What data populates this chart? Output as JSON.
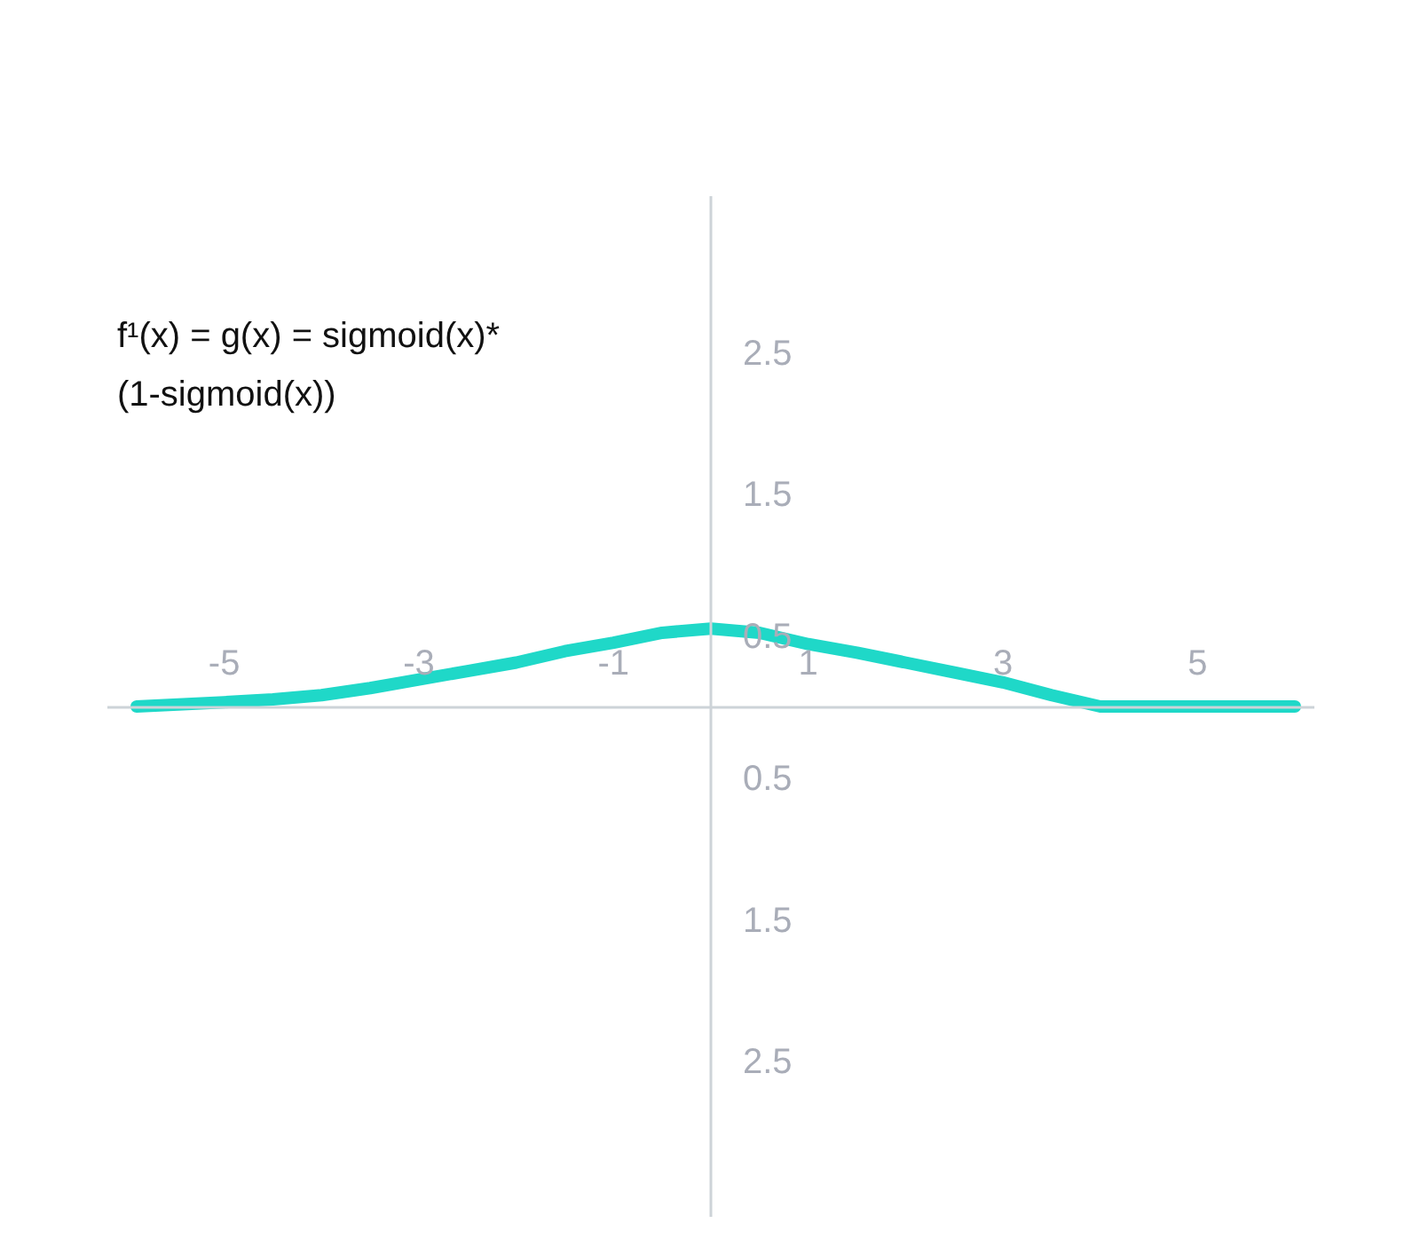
{
  "chart_data": {
    "type": "line",
    "x": [
      -5.9,
      -5,
      -4.5,
      -4,
      -3.5,
      -3,
      -2.5,
      -2,
      -1.5,
      -1,
      -0.5,
      0,
      0.5,
      1,
      1.5,
      2,
      2.5,
      3,
      3.5,
      4,
      5,
      6
    ],
    "series": [
      {
        "color": "#1fd8c8",
        "values": [
          0,
          0.03,
          0.05,
          0.08,
          0.13,
          0.19,
          0.25,
          0.31,
          0.39,
          0.45,
          0.52,
          0.55,
          0.52,
          0.44,
          0.38,
          0.31,
          0.24,
          0.17,
          0.08,
          0,
          0,
          0
        ]
      }
    ],
    "xlim": [
      -6.2,
      6.2
    ],
    "ylim": [
      -3.6,
      3.6
    ],
    "xticks": [
      -5,
      -3,
      -1,
      1,
      3,
      5
    ],
    "yticks": [
      2.5,
      1.5,
      0.5,
      {
        "value": -0.5,
        "label": "0.5"
      },
      {
        "value": -1.5,
        "label": "1.5"
      },
      {
        "value": -2.5,
        "label": "2.5"
      }
    ],
    "annotations": [
      "f¹(x) = g(x) = sigmoid(x)*\n(1-sigmoid(x))"
    ],
    "grid": false,
    "marker": "none",
    "line_style": "solid"
  }
}
